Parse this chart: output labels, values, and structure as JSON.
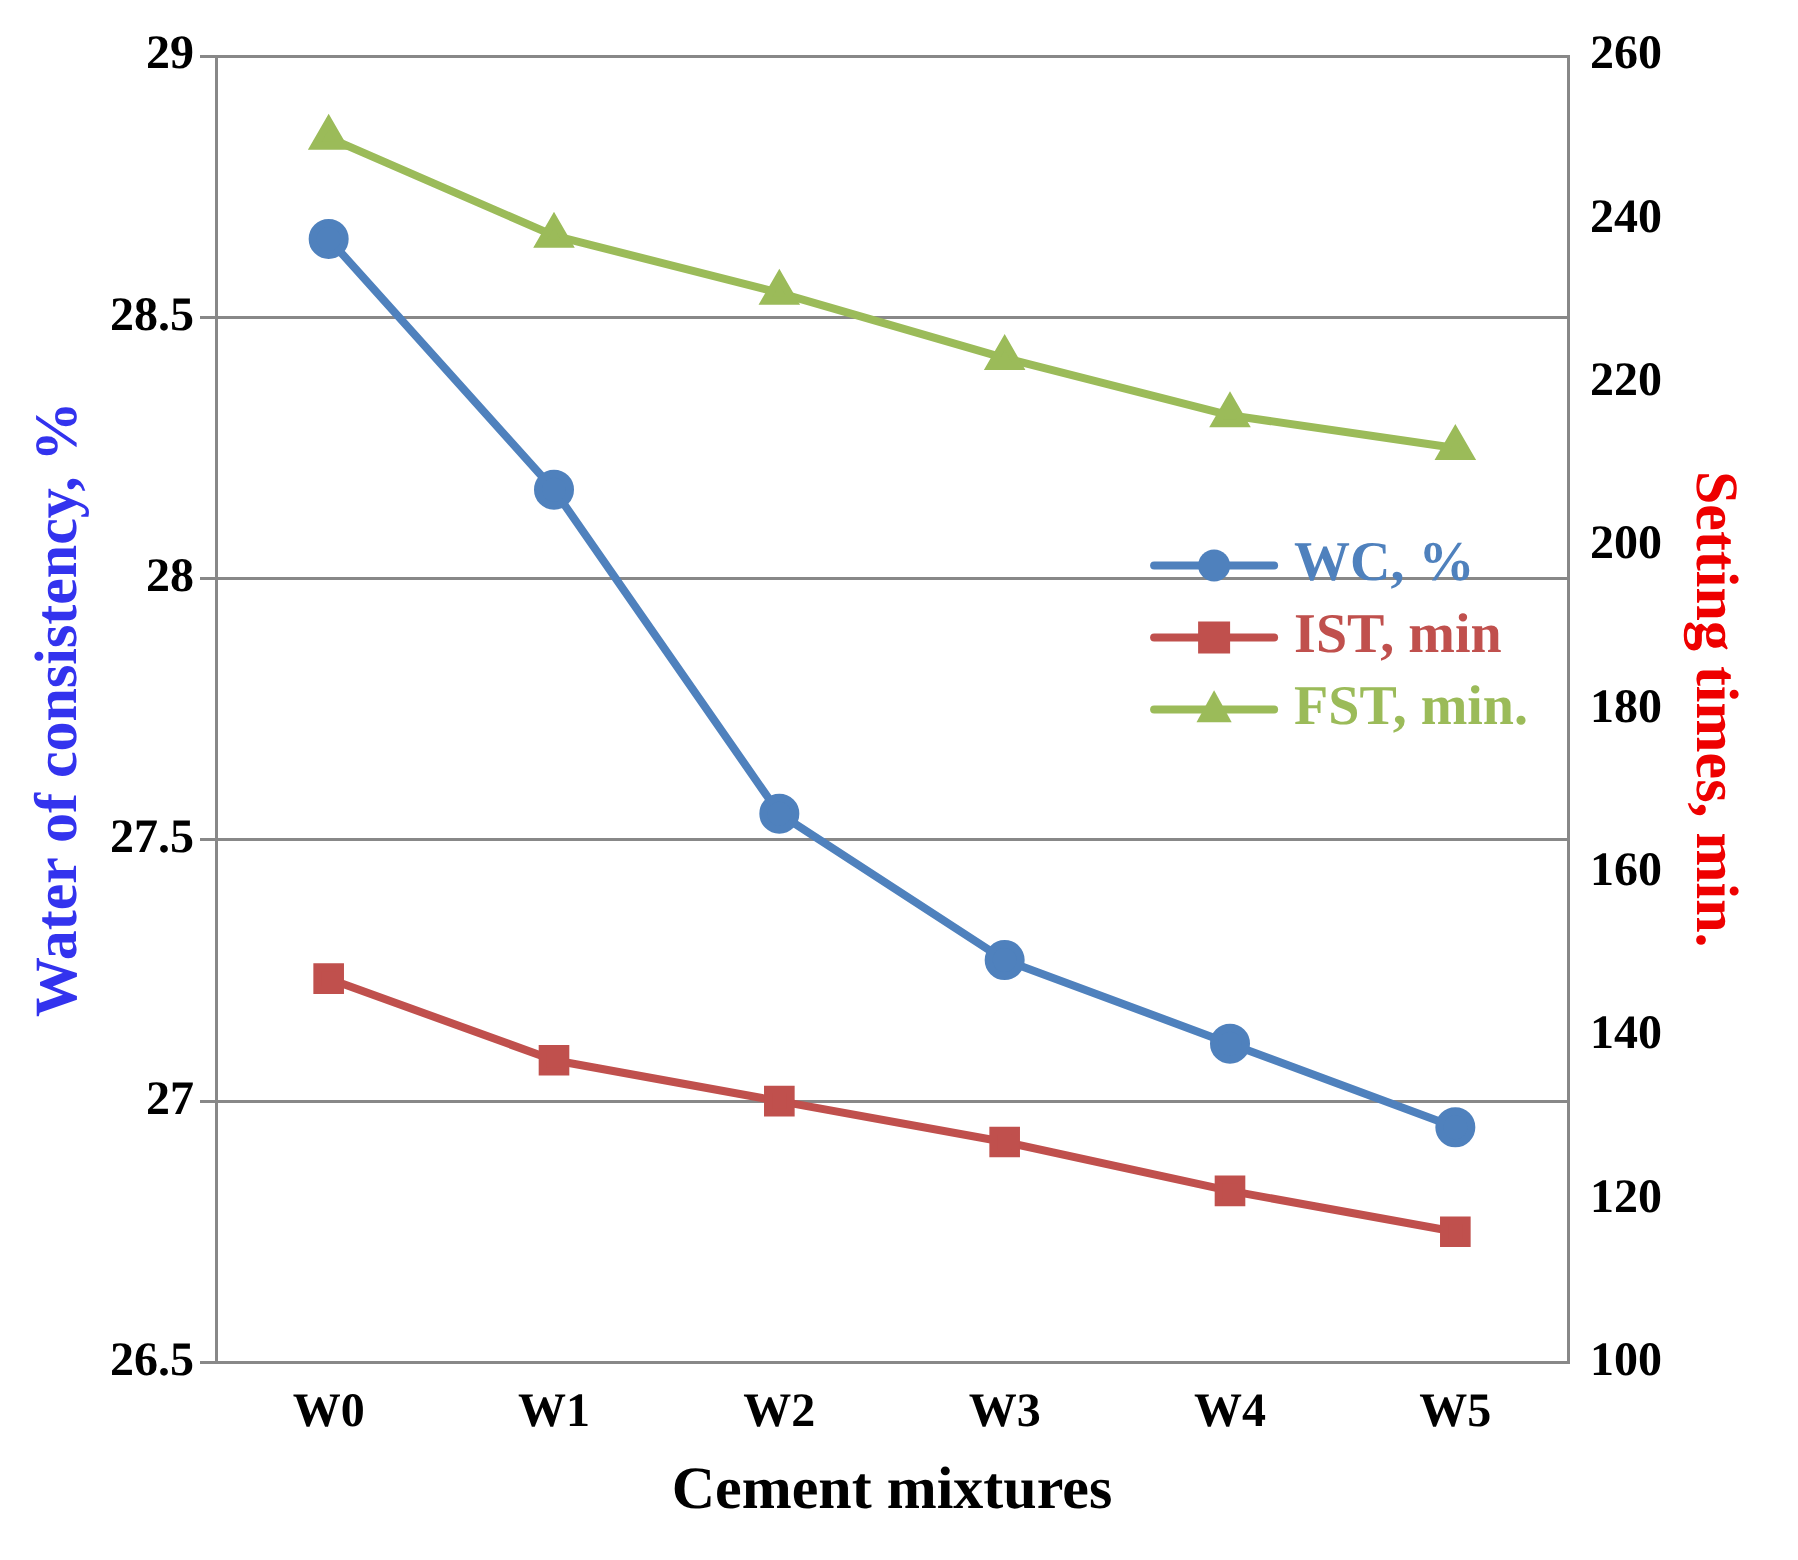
{
  "chart_data": {
    "type": "line",
    "xlabel": "Cement mixtures",
    "ylabel": "Water of consistency, %",
    "y2label": "Setting times, min.",
    "categories": [
      "W0",
      "W1",
      "W2",
      "W3",
      "W4",
      "W5"
    ],
    "series": [
      {
        "name": "WC, %",
        "color": "#4f81bd",
        "marker": "circle",
        "values": [
          28.65,
          28.17,
          27.55,
          27.27,
          27.11,
          26.95
        ]
      },
      {
        "name": "IST, min",
        "color": "#c0504d",
        "marker": "square",
        "axis": "y2",
        "values": [
          147,
          137,
          132,
          127,
          121,
          116
        ]
      },
      {
        "name": "FST, min.",
        "color": "#9bbb59",
        "marker": "triangle",
        "axis": "y2",
        "values": [
          250,
          238,
          231,
          223,
          216,
          212
        ]
      }
    ],
    "ylim": [
      26.5,
      29
    ],
    "yticks": [
      26.5,
      27,
      27.5,
      28,
      28.5,
      29
    ],
    "y2lim": [
      100,
      260
    ],
    "y2ticks": [
      100,
      120,
      140,
      160,
      180,
      200,
      220,
      240,
      260
    ],
    "grid": "y",
    "legend": "right"
  }
}
